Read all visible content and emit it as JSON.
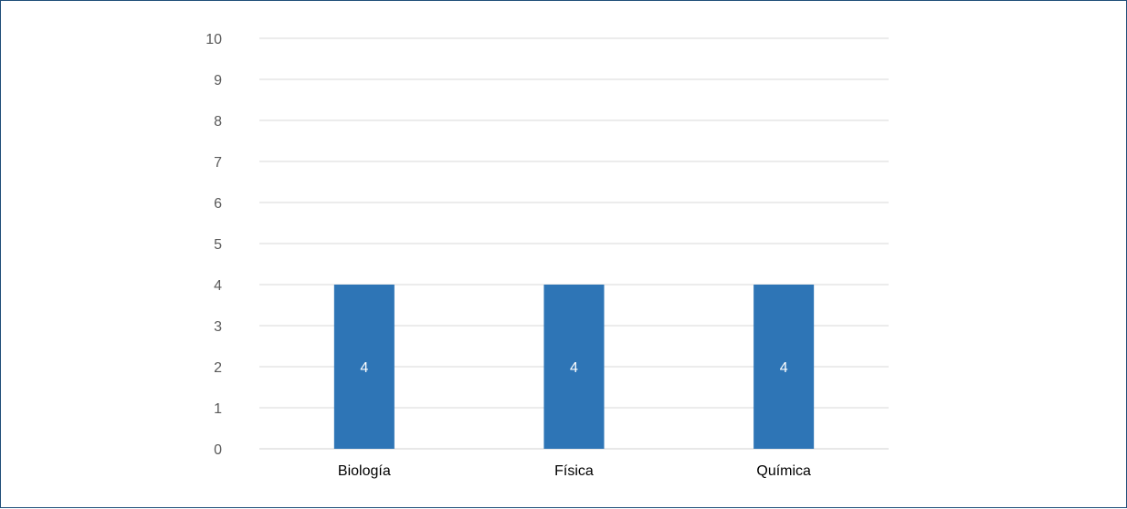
{
  "chart_data": {
    "type": "bar",
    "categories": [
      "Biología",
      "Física",
      "Química"
    ],
    "values": [
      4,
      4,
      4
    ],
    "data_labels": [
      "4",
      "4",
      "4"
    ],
    "title": "",
    "xlabel": "",
    "ylabel": "",
    "ylim": [
      0,
      10
    ],
    "yticks": [
      0,
      1,
      2,
      3,
      4,
      5,
      6,
      7,
      8,
      9,
      10
    ],
    "grid": true,
    "legend": "none",
    "bar_color": "#2e75b6"
  }
}
